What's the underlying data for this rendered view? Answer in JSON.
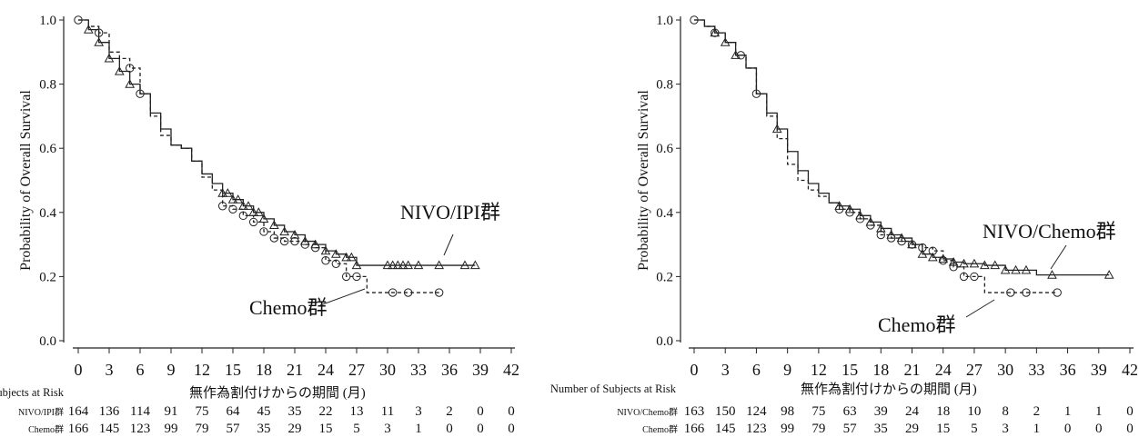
{
  "chart_data": [
    {
      "type": "line",
      "subtype": "kaplan-meier",
      "ylabel": "Probability of Overall Survival",
      "xlabel": "無作為割付けからの期間 (月)",
      "ylim": [
        0,
        1.0
      ],
      "xlim": [
        0,
        42
      ],
      "xticks": [
        "0",
        "3",
        "6",
        "9",
        "12",
        "15",
        "18",
        "21",
        "24",
        "27",
        "30",
        "33",
        "36",
        "39",
        "42"
      ],
      "yticks": [
        "0.0",
        "0.2",
        "0.4",
        "0.6",
        "0.8",
        "1.0"
      ],
      "grid": false,
      "series": [
        {
          "name": "NIVO/IPI群",
          "line_style": "solid",
          "marker": "triangle",
          "x": [
            0,
            1,
            2,
            3,
            4,
            5,
            6,
            7,
            8,
            9,
            10,
            11,
            12,
            13,
            14,
            15,
            16,
            17,
            18,
            19,
            20,
            21,
            22,
            23,
            24,
            25,
            26,
            27,
            28,
            30,
            33,
            36,
            38.5
          ],
          "y": [
            1.0,
            0.97,
            0.93,
            0.88,
            0.84,
            0.8,
            0.77,
            0.71,
            0.66,
            0.61,
            0.6,
            0.56,
            0.52,
            0.49,
            0.46,
            0.44,
            0.42,
            0.4,
            0.38,
            0.36,
            0.34,
            0.33,
            0.31,
            0.3,
            0.28,
            0.27,
            0.26,
            0.235,
            0.235,
            0.235,
            0.235,
            0.235,
            0.235
          ],
          "censor_x": [
            1,
            2,
            3,
            4,
            5,
            14,
            14.5,
            15,
            15.5,
            16,
            16.5,
            17,
            17.5,
            18,
            19,
            20,
            21,
            22,
            23,
            24,
            25,
            26,
            26.5,
            27,
            30,
            30.5,
            31,
            31.5,
            32,
            33,
            35,
            37.5,
            38.5
          ]
        },
        {
          "name": "Chemo群",
          "line_style": "dashed",
          "marker": "circle",
          "x": [
            0,
            1,
            2,
            3,
            4,
            5,
            6,
            7,
            8,
            9,
            10,
            11,
            12,
            13,
            14,
            15,
            16,
            17,
            18,
            19,
            20,
            21,
            22,
            23,
            24,
            25,
            26,
            27,
            28,
            30,
            33,
            35
          ],
          "y": [
            1.0,
            0.98,
            0.96,
            0.9,
            0.88,
            0.85,
            0.77,
            0.7,
            0.64,
            0.61,
            0.6,
            0.56,
            0.51,
            0.47,
            0.42,
            0.41,
            0.39,
            0.37,
            0.34,
            0.32,
            0.31,
            0.31,
            0.3,
            0.29,
            0.25,
            0.24,
            0.2,
            0.2,
            0.15,
            0.15,
            0.15,
            0.15
          ],
          "censor_x": [
            0,
            2,
            5,
            6,
            14,
            15,
            16,
            17,
            18,
            19,
            20,
            21,
            22,
            23,
            24,
            25,
            26,
            27,
            30.5,
            32,
            35
          ]
        }
      ],
      "annotations": [
        {
          "text": "NIVO/IPI群",
          "series": 0
        },
        {
          "text": "Chemo群",
          "series": 1
        }
      ],
      "risk_table": {
        "header": "Number of Subjects at Risk",
        "rows": [
          {
            "label": "NIVO/IPI群",
            "values": [
              "164",
              "136",
              "114",
              "91",
              "75",
              "64",
              "45",
              "35",
              "22",
              "13",
              "11",
              "3",
              "2",
              "0",
              "0"
            ]
          },
          {
            "label": "Chemo群",
            "values": [
              "166",
              "145",
              "123",
              "99",
              "79",
              "57",
              "35",
              "29",
              "15",
              "5",
              "3",
              "1",
              "0",
              "0",
              "0"
            ]
          }
        ]
      }
    },
    {
      "type": "line",
      "subtype": "kaplan-meier",
      "ylabel": "Probability of Overall Survival",
      "xlabel": "無作為割付けからの期間 (月)",
      "ylim": [
        0,
        1.0
      ],
      "xlim": [
        0,
        42
      ],
      "xticks": [
        "0",
        "3",
        "6",
        "9",
        "12",
        "15",
        "18",
        "21",
        "24",
        "27",
        "30",
        "33",
        "36",
        "39",
        "42"
      ],
      "yticks": [
        "0.0",
        "0.2",
        "0.4",
        "0.6",
        "0.8",
        "1.0"
      ],
      "grid": false,
      "series": [
        {
          "name": "NIVO/Chemo群",
          "line_style": "solid",
          "marker": "triangle",
          "x": [
            0,
            1,
            2,
            3,
            4,
            5,
            6,
            7,
            8,
            9,
            10,
            11,
            12,
            13,
            14,
            15,
            16,
            17,
            18,
            19,
            20,
            21,
            22,
            23,
            24,
            25,
            26,
            27,
            28,
            30,
            33,
            36,
            40
          ],
          "y": [
            1.0,
            0.98,
            0.96,
            0.93,
            0.89,
            0.85,
            0.77,
            0.71,
            0.66,
            0.59,
            0.53,
            0.49,
            0.46,
            0.43,
            0.42,
            0.41,
            0.39,
            0.37,
            0.35,
            0.33,
            0.32,
            0.3,
            0.27,
            0.26,
            0.255,
            0.245,
            0.24,
            0.24,
            0.235,
            0.22,
            0.205,
            0.205,
            0.205
          ],
          "censor_x": [
            2,
            3,
            4,
            8,
            14,
            15,
            16,
            17,
            18,
            19,
            20,
            21,
            22,
            23,
            24,
            25,
            26,
            27,
            28,
            29,
            30,
            31,
            32,
            34.5,
            40
          ]
        },
        {
          "name": "Chemo群",
          "line_style": "dashed",
          "marker": "circle",
          "x": [
            0,
            1,
            2,
            3,
            4,
            5,
            6,
            7,
            8,
            9,
            10,
            11,
            12,
            13,
            14,
            15,
            16,
            17,
            18,
            19,
            20,
            21,
            22,
            23,
            24,
            25,
            26,
            27,
            28,
            30,
            33,
            35
          ],
          "y": [
            1.0,
            0.98,
            0.96,
            0.93,
            0.89,
            0.85,
            0.77,
            0.7,
            0.63,
            0.55,
            0.5,
            0.47,
            0.45,
            0.43,
            0.41,
            0.4,
            0.38,
            0.36,
            0.33,
            0.32,
            0.31,
            0.3,
            0.29,
            0.28,
            0.25,
            0.23,
            0.2,
            0.2,
            0.15,
            0.15,
            0.15,
            0.15
          ],
          "censor_x": [
            0,
            2,
            4.5,
            6,
            14,
            15,
            16,
            17,
            18,
            19,
            20,
            21,
            22,
            23,
            24,
            25,
            26,
            27,
            30.5,
            32,
            35
          ]
        }
      ],
      "annotations": [
        {
          "text": "NIVO/Chemo群",
          "series": 0
        },
        {
          "text": "Chemo群",
          "series": 1
        }
      ],
      "risk_table": {
        "header": "Number of Subjects at Risk",
        "rows": [
          {
            "label": "NIVO/Chemo群",
            "values": [
              "163",
              "150",
              "124",
              "98",
              "75",
              "63",
              "39",
              "24",
              "18",
              "10",
              "8",
              "2",
              "1",
              "1",
              "0"
            ]
          },
          {
            "label": "Chemo群",
            "values": [
              "166",
              "145",
              "123",
              "99",
              "79",
              "57",
              "35",
              "29",
              "15",
              "5",
              "3",
              "1",
              "0",
              "0",
              "0"
            ]
          }
        ]
      }
    }
  ]
}
